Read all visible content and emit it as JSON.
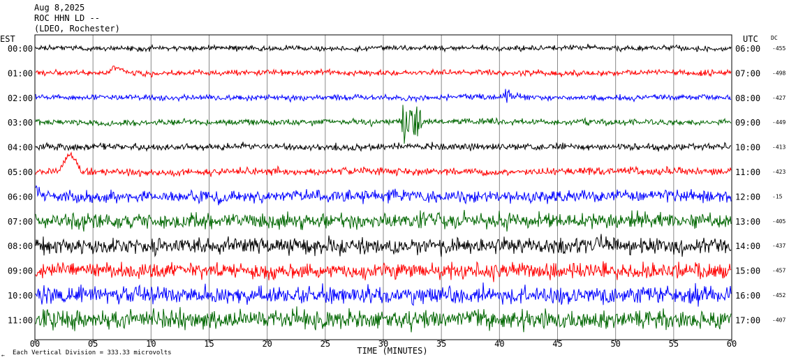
{
  "header": {
    "date": "Aug 8,2025",
    "station": "ROC HHN LD --",
    "network": "(LDEO, Rochester)"
  },
  "chart_data": {
    "type": "line",
    "title": "",
    "left_axis_label": "EST",
    "right_axis_label": "UTC",
    "dc_label": "DC",
    "xlabel": "TIME (MINUTES)",
    "xlim": [
      0,
      60
    ],
    "x_ticks": [
      "00",
      "05",
      "10",
      "15",
      "20",
      "25",
      "30",
      "35",
      "40",
      "45",
      "50",
      "55",
      "60"
    ],
    "scale_note": "Each Vertical Division =  333.33 microvolts",
    "footer_mark": "←",
    "trace_colors": [
      "#000000",
      "#ff0000",
      "#0000ff",
      "#006600"
    ],
    "traces": [
      {
        "est": "00:00",
        "utc": "06:00",
        "dc": "-455",
        "color": "#000000"
      },
      {
        "est": "01:00",
        "utc": "07:00",
        "dc": "-498",
        "color": "#ff0000"
      },
      {
        "est": "02:00",
        "utc": "08:00",
        "dc": "-427",
        "color": "#0000ff"
      },
      {
        "est": "03:00",
        "utc": "09:00",
        "dc": "-449",
        "color": "#006600"
      },
      {
        "est": "04:00",
        "utc": "10:00",
        "dc": "-413",
        "color": "#000000"
      },
      {
        "est": "05:00",
        "utc": "11:00",
        "dc": "-423",
        "color": "#ff0000"
      },
      {
        "est": "06:00",
        "utc": "12:00",
        "dc": "-15",
        "color": "#0000ff"
      },
      {
        "est": "07:00",
        "utc": "13:00",
        "dc": "-405",
        "color": "#006600"
      },
      {
        "est": "08:00",
        "utc": "14:00",
        "dc": "-437",
        "color": "#000000"
      },
      {
        "est": "09:00",
        "utc": "15:00",
        "dc": "-457",
        "color": "#ff0000"
      },
      {
        "est": "10:00",
        "utc": "16:00",
        "dc": "-452",
        "color": "#0000ff"
      },
      {
        "est": "11:00",
        "utc": "17:00",
        "dc": "-407",
        "color": "#006600"
      }
    ],
    "grid": "vertical every 5 minutes"
  }
}
